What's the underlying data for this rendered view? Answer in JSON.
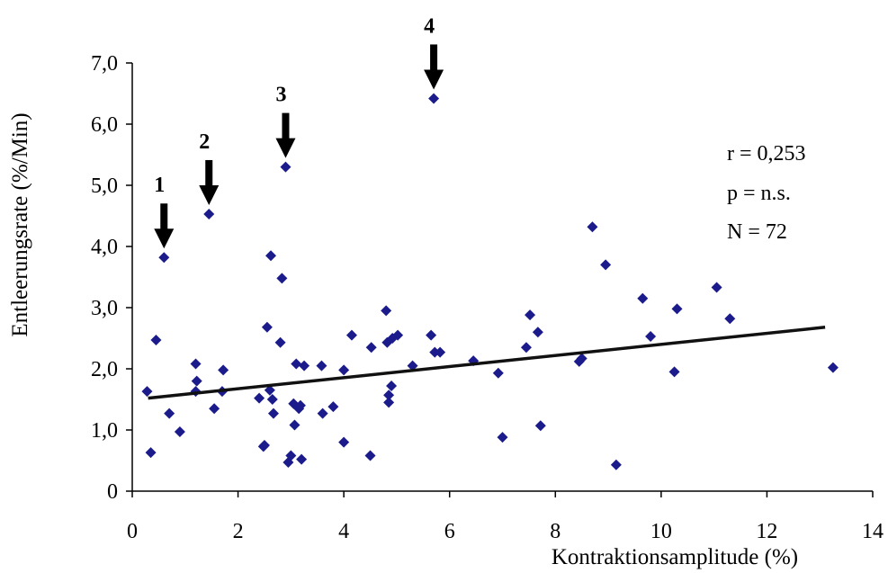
{
  "chart_data": {
    "type": "scatter",
    "title": "",
    "xlabel": "Kontraktionsamplitude (%)",
    "ylabel": "Entleerungsrate (%/Min)",
    "xlim": [
      0,
      14
    ],
    "ylim": [
      0,
      7
    ],
    "x_ticks": [
      "0",
      "2",
      "4",
      "6",
      "8",
      "10",
      "12",
      "14"
    ],
    "y_ticks": [
      "0",
      "1,0",
      "2,0",
      "3,0",
      "4,0",
      "5,0",
      "6,0",
      "7,0"
    ],
    "grid": false,
    "legend": false,
    "marker": "diamond",
    "marker_color": "#1b1b8c",
    "series": [
      {
        "points": [
          [
            0.28,
            1.63
          ],
          [
            0.35,
            0.63
          ],
          [
            0.45,
            2.47
          ],
          [
            0.6,
            3.82
          ],
          [
            0.7,
            1.27
          ],
          [
            0.9,
            0.97
          ],
          [
            1.2,
            2.08
          ],
          [
            1.2,
            1.63
          ],
          [
            1.22,
            1.8
          ],
          [
            1.45,
            4.53
          ],
          [
            1.55,
            1.35
          ],
          [
            1.7,
            1.63
          ],
          [
            1.72,
            1.98
          ],
          [
            2.4,
            1.52
          ],
          [
            2.48,
            0.73
          ],
          [
            2.5,
            0.75
          ],
          [
            2.55,
            2.68
          ],
          [
            2.6,
            1.65
          ],
          [
            2.62,
            3.85
          ],
          [
            2.65,
            1.5
          ],
          [
            2.67,
            1.27
          ],
          [
            2.8,
            2.43
          ],
          [
            2.83,
            3.48
          ],
          [
            2.9,
            5.3
          ],
          [
            2.95,
            0.47
          ],
          [
            3.0,
            0.58
          ],
          [
            3.05,
            1.43
          ],
          [
            3.07,
            1.08
          ],
          [
            3.1,
            2.08
          ],
          [
            3.15,
            1.35
          ],
          [
            3.18,
            1.4
          ],
          [
            3.2,
            0.52
          ],
          [
            3.25,
            2.05
          ],
          [
            3.58,
            2.05
          ],
          [
            3.6,
            1.27
          ],
          [
            3.8,
            1.38
          ],
          [
            4.0,
            0.8
          ],
          [
            4.0,
            1.98
          ],
          [
            4.15,
            2.55
          ],
          [
            4.5,
            0.58
          ],
          [
            4.52,
            2.35
          ],
          [
            4.8,
            2.95
          ],
          [
            4.82,
            2.43
          ],
          [
            4.85,
            1.57
          ],
          [
            4.85,
            1.45
          ],
          [
            4.9,
            1.72
          ],
          [
            4.92,
            2.5
          ],
          [
            5.02,
            2.55
          ],
          [
            5.3,
            2.05
          ],
          [
            5.65,
            2.55
          ],
          [
            5.7,
            6.42
          ],
          [
            5.72,
            2.27
          ],
          [
            5.82,
            2.27
          ],
          [
            6.45,
            2.13
          ],
          [
            6.92,
            1.93
          ],
          [
            7.0,
            0.88
          ],
          [
            7.45,
            2.35
          ],
          [
            7.52,
            2.88
          ],
          [
            7.67,
            2.6
          ],
          [
            7.72,
            1.07
          ],
          [
            8.45,
            2.12
          ],
          [
            8.5,
            2.17
          ],
          [
            8.7,
            4.32
          ],
          [
            8.95,
            3.7
          ],
          [
            9.15,
            0.43
          ],
          [
            9.65,
            3.15
          ],
          [
            9.8,
            2.53
          ],
          [
            10.25,
            1.95
          ],
          [
            10.3,
            2.98
          ],
          [
            11.05,
            3.33
          ],
          [
            11.3,
            2.82
          ],
          [
            13.25,
            2.02
          ]
        ]
      }
    ],
    "trendline": {
      "x": [
        0.3,
        13.1
      ],
      "y": [
        1.52,
        2.68
      ]
    },
    "arrows": [
      {
        "label": "1",
        "x": 0.6,
        "y": 3.82
      },
      {
        "label": "2",
        "x": 1.45,
        "y": 4.53
      },
      {
        "label": "3",
        "x": 2.9,
        "y": 5.3
      },
      {
        "label": "4",
        "x": 5.7,
        "y": 6.42
      }
    ],
    "annotations": [
      "r = 0,253",
      "p = n.s.",
      "N = 72"
    ]
  }
}
